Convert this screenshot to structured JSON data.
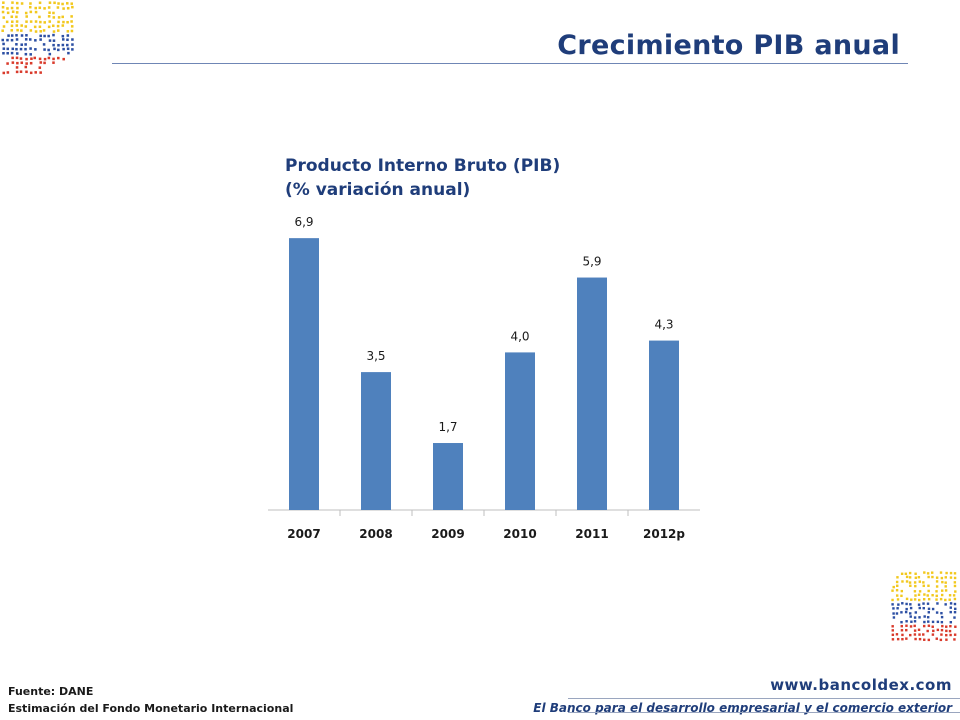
{
  "header": {
    "title": "Crecimiento PIB anual"
  },
  "chart_data": {
    "type": "bar",
    "title": "Producto Interno Bruto (PIB)",
    "subtitle": "(% variación anual)",
    "categories": [
      "2007",
      "2008",
      "2009",
      "2010",
      "2011",
      "2012p"
    ],
    "values": [
      6.9,
      3.5,
      1.7,
      4.0,
      5.9,
      4.3
    ],
    "value_labels": [
      "6,9",
      "3,5",
      "1,7",
      "4,0",
      "5,9",
      "4,3"
    ],
    "xlabel": "",
    "ylabel": "",
    "ylim": [
      0,
      7
    ],
    "grid": false,
    "legend": "none",
    "bar_color": "#4f81bd"
  },
  "footer": {
    "source_line1": "Fuente: DANE",
    "source_line2": "Estimación del Fondo Monetario Internacional",
    "url": "www.bancoldex.com",
    "tagline": "El Banco para el desarrollo empresarial y el comercio exterior"
  },
  "colors": {
    "title": "#1f3d7a",
    "logo_yellow": "#f2c81e",
    "logo_blue": "#2c4fa3",
    "logo_red": "#d93a2b"
  },
  "icons": {
    "top_logo": "bancoldex-dots-logo-icon",
    "bottom_logo": "bancoldex-dots-logo-icon"
  }
}
